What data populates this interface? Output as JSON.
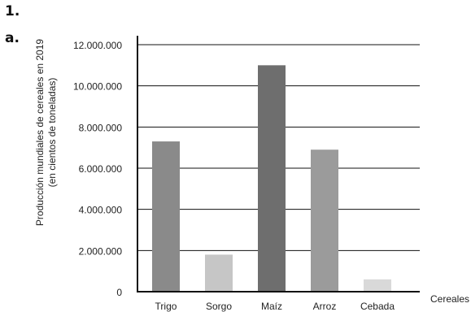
{
  "labels": {
    "number": "1.",
    "letter": "a."
  },
  "chart_data": {
    "type": "bar",
    "categories": [
      "Trigo",
      "Sorgo",
      "Maíz",
      "Arroz",
      "Cebada"
    ],
    "values": [
      7300000,
      1800000,
      11000000,
      6900000,
      600000
    ],
    "bar_colors": [
      "#8a8a8a",
      "#c6c6c6",
      "#6e6e6e",
      "#9b9b9b",
      "#d9d9d9"
    ],
    "ylabel_line1": "Producción mundiales de cereales en 2019",
    "ylabel_line2": "(en cientos de toneladas)",
    "xlabel": "Cereales",
    "ylim": [
      0,
      12000000
    ],
    "yticks": [
      0,
      2000000,
      4000000,
      6000000,
      8000000,
      10000000,
      12000000
    ],
    "ytick_labels": [
      "0",
      "2.000.000",
      "4.000.000",
      "6.000.000",
      "8.000.000",
      "10.000.000",
      "12.000.000"
    ],
    "grid": true
  }
}
